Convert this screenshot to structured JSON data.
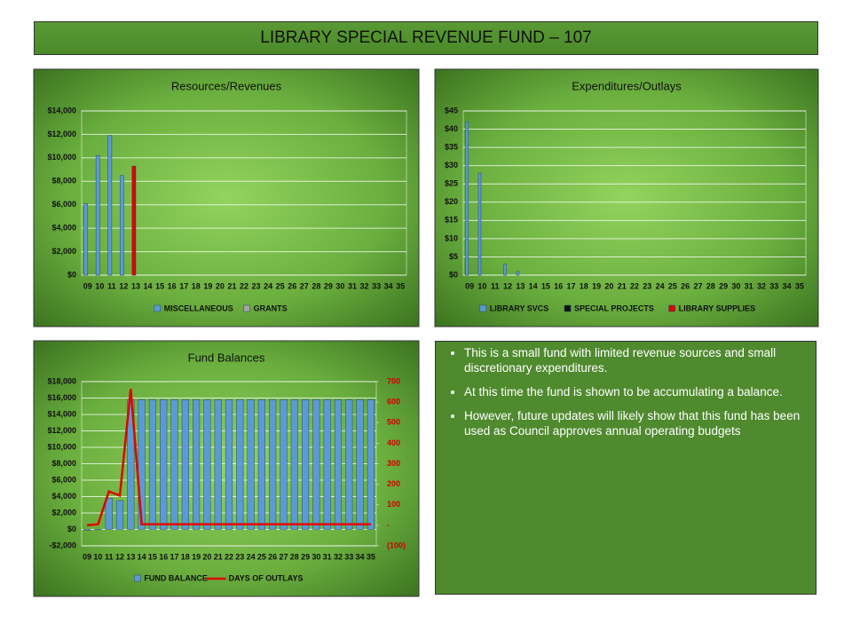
{
  "title": "LIBRARY SPECIAL REVENUE FUND – 107",
  "bullets": [
    "This is a small fund with limited revenue sources and small discretionary expenditures.",
    "At this time the fund is shown to be accumulating a balance.",
    "However, future updates will likely show that this fund has been used as Council approves annual operating budgets"
  ],
  "chart_data": [
    {
      "type": "bar",
      "title": "Resources/Revenues",
      "categories": [
        "09",
        "10",
        "11",
        "12",
        "13",
        "14",
        "15",
        "16",
        "17",
        "18",
        "19",
        "20",
        "21",
        "22",
        "23",
        "24",
        "25",
        "26",
        "27",
        "28",
        "29",
        "30",
        "31",
        "32",
        "33",
        "34",
        "35"
      ],
      "series": [
        {
          "name": "MISCELLANEOUS",
          "color": "#5b9bd5",
          "highlight_index": 4,
          "highlight_color": "#e00000",
          "values": [
            6100,
            10200,
            11900,
            8500,
            9300,
            null,
            null,
            null,
            null,
            null,
            null,
            null,
            null,
            null,
            null,
            null,
            null,
            null,
            null,
            null,
            null,
            null,
            null,
            null,
            null,
            null,
            null
          ]
        },
        {
          "name": "GRANTS",
          "color": "#a5a5a5",
          "values": [
            null,
            null,
            null,
            null,
            null,
            null,
            null,
            null,
            null,
            null,
            null,
            null,
            null,
            null,
            null,
            null,
            null,
            null,
            null,
            null,
            null,
            null,
            null,
            null,
            null,
            null,
            null
          ]
        }
      ],
      "ylim": [
        0,
        14000
      ],
      "yticks": [
        {
          "value": 0,
          "label": "$0"
        },
        {
          "value": 2000,
          "label": "$2,000"
        },
        {
          "value": 4000,
          "label": "$4,000"
        },
        {
          "value": 6000,
          "label": "$6,000"
        },
        {
          "value": 8000,
          "label": "$8,000"
        },
        {
          "value": 10000,
          "label": "$10,000"
        },
        {
          "value": 12000,
          "label": "$12,000"
        },
        {
          "value": 14000,
          "label": "$14,000"
        }
      ],
      "grid": true,
      "legend": "bottom"
    },
    {
      "type": "bar",
      "title": "Expenditures/Outlays",
      "categories": [
        "09",
        "10",
        "11",
        "12",
        "13",
        "14",
        "15",
        "16",
        "17",
        "18",
        "19",
        "20",
        "21",
        "22",
        "23",
        "24",
        "25",
        "26",
        "27",
        "28",
        "29",
        "30",
        "31",
        "32",
        "33",
        "34",
        "35"
      ],
      "series": [
        {
          "name": "LIBRARY SVCS",
          "color": "#5b9bd5",
          "values": [
            42,
            28,
            null,
            3,
            1,
            null,
            null,
            null,
            null,
            null,
            null,
            null,
            null,
            null,
            null,
            null,
            null,
            null,
            null,
            null,
            null,
            null,
            null,
            null,
            null,
            null,
            null
          ]
        },
        {
          "name": "SPECIAL PROJECTS",
          "color": "#111111",
          "values": [
            null,
            null,
            null,
            null,
            null,
            null,
            null,
            null,
            null,
            null,
            null,
            null,
            null,
            null,
            null,
            null,
            null,
            null,
            null,
            null,
            null,
            null,
            null,
            null,
            null,
            null,
            null
          ]
        },
        {
          "name": "LIBRARY SUPPLIES",
          "color": "#e00000",
          "values": [
            null,
            null,
            null,
            null,
            null,
            null,
            null,
            null,
            null,
            null,
            null,
            null,
            null,
            null,
            null,
            null,
            null,
            null,
            null,
            null,
            null,
            null,
            null,
            null,
            null,
            null,
            null
          ]
        }
      ],
      "ylim": [
        0,
        45
      ],
      "yticks": [
        {
          "value": 0,
          "label": "$0"
        },
        {
          "value": 5,
          "label": "$5"
        },
        {
          "value": 10,
          "label": "$10"
        },
        {
          "value": 15,
          "label": "$15"
        },
        {
          "value": 20,
          "label": "$20"
        },
        {
          "value": 25,
          "label": "$25"
        },
        {
          "value": 30,
          "label": "$30"
        },
        {
          "value": 35,
          "label": "$35"
        },
        {
          "value": 40,
          "label": "$40"
        },
        {
          "value": 45,
          "label": "$45"
        }
      ],
      "grid": true,
      "legend": "bottom"
    },
    {
      "type": "combo",
      "title": "Fund Balances",
      "categories": [
        "09",
        "10",
        "11",
        "12",
        "13",
        "14",
        "15",
        "16",
        "17",
        "18",
        "19",
        "20",
        "21",
        "22",
        "23",
        "24",
        "25",
        "26",
        "27",
        "28",
        "29",
        "30",
        "31",
        "32",
        "33",
        "34",
        "35"
      ],
      "series": [
        {
          "name": "FUND BALANCE",
          "kind": "bar",
          "color": "#5b9bd5",
          "values": [
            -100,
            0,
            3800,
            3500,
            15800,
            15800,
            15800,
            15800,
            15800,
            15800,
            15800,
            15800,
            15800,
            15800,
            15800,
            15800,
            15800,
            15800,
            15800,
            15800,
            15800,
            15800,
            15800,
            15800,
            15800,
            15800,
            15800
          ]
        },
        {
          "name": "DAYS OF OUTLAYS",
          "kind": "line",
          "axis": "y2",
          "color": "#e00000",
          "values": [
            0,
            5,
            165,
            145,
            665,
            5,
            5,
            5,
            5,
            5,
            5,
            5,
            5,
            5,
            5,
            5,
            5,
            5,
            5,
            5,
            5,
            5,
            5,
            5,
            5,
            5,
            5
          ]
        }
      ],
      "ylim": [
        -2000,
        18000
      ],
      "yticks": [
        {
          "value": -2000,
          "label": "-$2,000"
        },
        {
          "value": 0,
          "label": "$0"
        },
        {
          "value": 2000,
          "label": "$2,000"
        },
        {
          "value": 4000,
          "label": "$4,000"
        },
        {
          "value": 6000,
          "label": "$6,000"
        },
        {
          "value": 8000,
          "label": "$8,000"
        },
        {
          "value": 10000,
          "label": "$10,000"
        },
        {
          "value": 12000,
          "label": "$12,000"
        },
        {
          "value": 14000,
          "label": "$14,000"
        },
        {
          "value": 16000,
          "label": "$16,000"
        },
        {
          "value": 18000,
          "label": "$18,000"
        }
      ],
      "y2lim": [
        -100,
        700
      ],
      "y2ticks": [
        {
          "value": -100,
          "label": "(100)"
        },
        {
          "value": 0,
          "label": "-"
        },
        100,
        200,
        300,
        400,
        500,
        600,
        700
      ],
      "grid": true,
      "legend": "bottom"
    }
  ]
}
